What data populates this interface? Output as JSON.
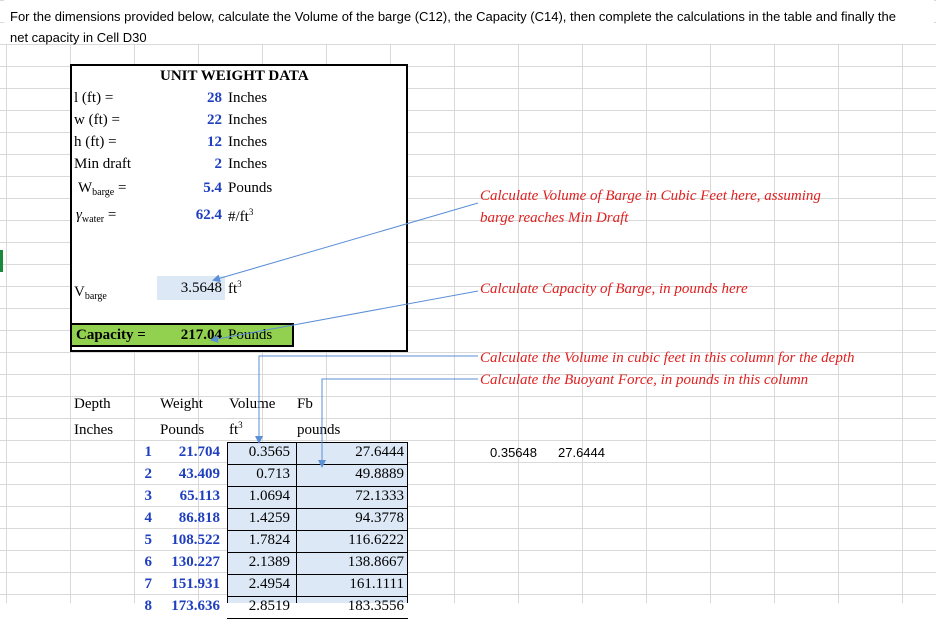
{
  "instructions": "For the dimensions provided below, calculate the Volume of the barge (C12), the Capacity (C14), then complete the calculations in the table and finally the net capacity in Cell D30",
  "unit_weight": {
    "title": "UNIT WEIGHT DATA",
    "rows": [
      {
        "label": "l (ft) =",
        "value": "28",
        "unit": "Inches"
      },
      {
        "label": "w (ft) =",
        "value": "22",
        "unit": "Inches"
      },
      {
        "label": "h (ft) =",
        "value": "12",
        "unit": "Inches"
      },
      {
        "label": "Min draft",
        "value": "2",
        "unit": "Inches"
      },
      {
        "label": "W",
        "sub": "barge",
        "suffix": " =",
        "value": "5.4",
        "unit": "Pounds"
      },
      {
        "label": "γ",
        "sub": "water",
        "suffix": " =",
        "value": "62.4",
        "unit": "#/ft",
        "unit_sup": "3"
      }
    ],
    "vbarge": {
      "label": "V",
      "sub": "barge",
      "value": "3.5648",
      "unit": "ft",
      "unit_sup": "3"
    },
    "capacity": {
      "label": "Capacity =",
      "value": "217.04",
      "unit": "Pounds"
    }
  },
  "notes": {
    "volume": "Calculate Volume of Barge in Cubic Feet here, assuming barge reaches Min Draft",
    "capacity": "Calculate Capacity of Barge, in pounds here",
    "column_volume": "Calculate the Volume in cubic feet in this column for the depth",
    "column_fb": "Calculate the Buoyant Force, in pounds in this column"
  },
  "table": {
    "headers1": [
      "Depth",
      "Weight",
      "Volume",
      "Fb"
    ],
    "headers2": [
      "Inches",
      "Pounds",
      "ft",
      "pounds"
    ],
    "rows": [
      {
        "depth": "1",
        "weight": "21.704",
        "volume": "0.3565",
        "fb": "27.6444"
      },
      {
        "depth": "2",
        "weight": "43.409",
        "volume": "0.713",
        "fb": "49.8889"
      },
      {
        "depth": "3",
        "weight": "65.113",
        "volume": "1.0694",
        "fb": "72.1333"
      },
      {
        "depth": "4",
        "weight": "86.818",
        "volume": "1.4259",
        "fb": "94.3778"
      },
      {
        "depth": "5",
        "weight": "108.522",
        "volume": "1.7824",
        "fb": "116.6222"
      },
      {
        "depth": "6",
        "weight": "130.227",
        "volume": "2.1389",
        "fb": "138.8667"
      },
      {
        "depth": "7",
        "weight": "151.931",
        "volume": "2.4954",
        "fb": "161.1111"
      },
      {
        "depth": "8",
        "weight": "173.636",
        "volume": "2.8519",
        "fb": "183.3556"
      }
    ],
    "side_values": [
      "0.35648",
      "27.6444"
    ]
  }
}
